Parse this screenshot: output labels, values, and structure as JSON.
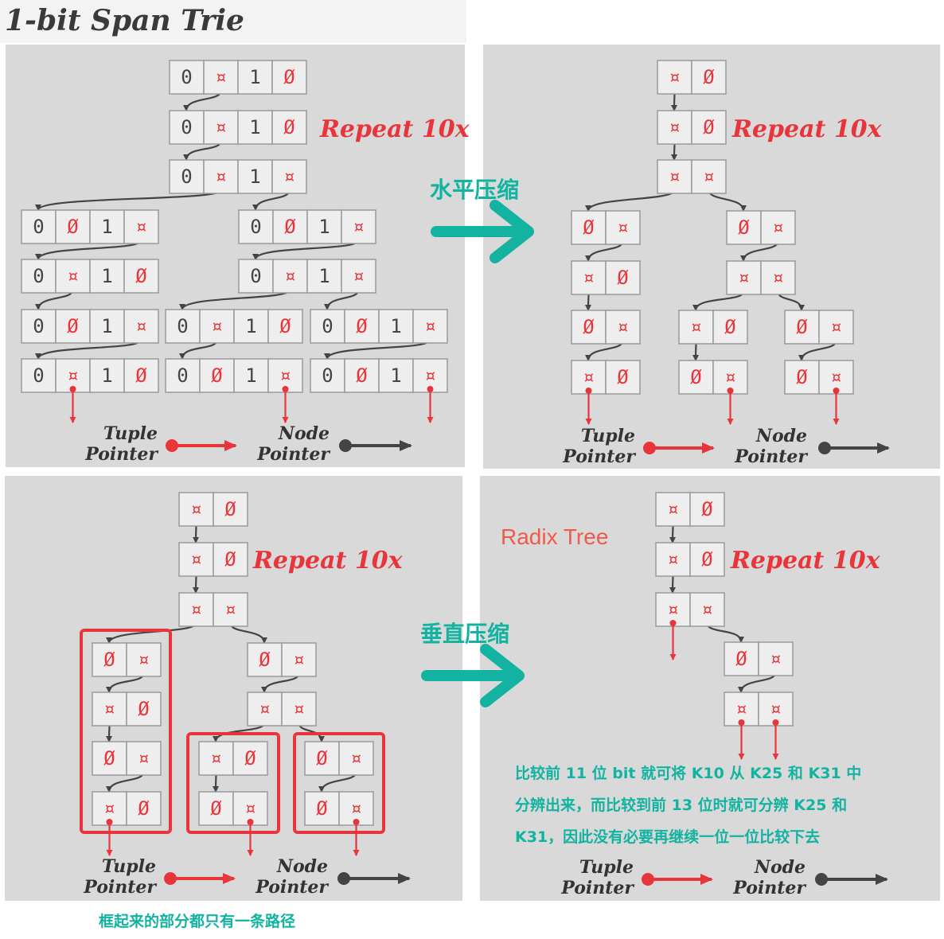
{
  "title": "1-bit Span Trie",
  "repeat_label": "Repeat 10x",
  "legend": {
    "tuple_line1": "Tuple",
    "tuple_line2": "Pointer",
    "node_line1": "Node",
    "node_line2": "Pointer"
  },
  "horizontal_compression": "水平压缩",
  "vertical_compression": "垂直压缩",
  "radix_tree": "Radix Tree",
  "boxed_note": "框起来的部分都只有一条路径",
  "radix_note_lines": [
    "比较前 11 位 bit 就可将 K10 从 K25 和 K31 中",
    "分辨出来，而比较到前 13 位时就可分辨 K25 和",
    "K31，因此没有必要再继续一位一位比较下去"
  ],
  "symbols": {
    "zero": "0",
    "one": "1",
    "empty": "Ø",
    "pointer": "¤"
  },
  "colors": {
    "panel": "#d9d9d9",
    "tuple_pointer": "#e8353b",
    "node_pointer": "#444444",
    "annotation_teal": "#12b3a0",
    "radix_label": "#f05a4a",
    "arrow_teal": "#12b3a0"
  },
  "icons": {
    "node_pointer_icon": "dark-arrow",
    "tuple_pointer_icon": "red-arrow",
    "compress_arrow_icon": "teal-chevron-arrow"
  }
}
